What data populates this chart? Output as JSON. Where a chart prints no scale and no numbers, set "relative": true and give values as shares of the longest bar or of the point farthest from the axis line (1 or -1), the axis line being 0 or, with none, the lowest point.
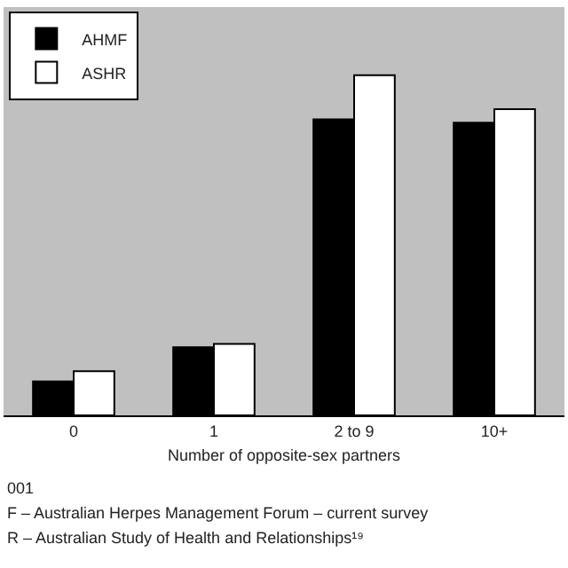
{
  "chart_data": {
    "type": "bar",
    "relative": true,
    "xlabel": "Number of opposite-sex partners",
    "categories": [
      "0",
      "1",
      "2 to 9",
      "10+"
    ],
    "series": [
      {
        "name": "AHMF",
        "color": "#000000",
        "values": [
          0.1,
          0.2,
          0.87,
          0.86
        ]
      },
      {
        "name": "ASHR",
        "color": "#ffffff",
        "values": [
          0.13,
          0.21,
          1.0,
          0.9
        ]
      }
    ],
    "legend": "top left",
    "annotations": [
      "001",
      "F – Australian Herpes Management Forum – current survey",
      "R – Australian Study of Health and Relationships¹⁹"
    ]
  }
}
